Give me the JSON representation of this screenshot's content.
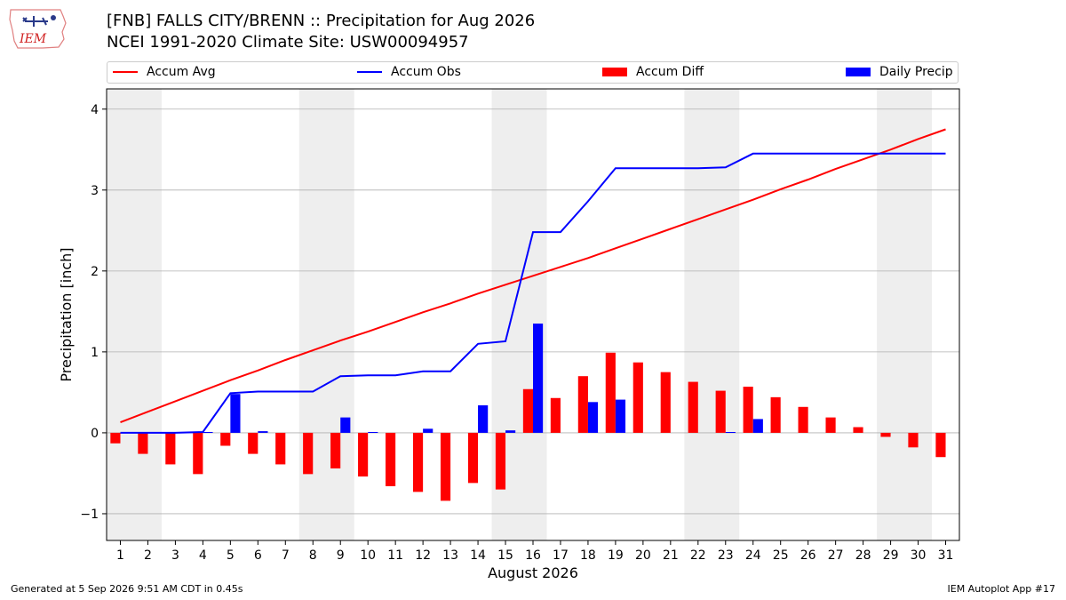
{
  "header": {
    "title_line1": "[FNB] FALLS CITY/BRENN :: Precipitation for Aug 2026",
    "title_line2": "NCEI 1991-2020 Climate Site: USW00094957",
    "logo_text": "IEM"
  },
  "legend": {
    "accum_avg": "Accum Avg",
    "accum_obs": "Accum Obs",
    "accum_diff": "Accum Diff",
    "daily_precip": "Daily Precip"
  },
  "footer": {
    "generated": "Generated at 5 Sep 2026 9:51 AM CDT in 0.45s",
    "app": "IEM Autoplot App #17"
  },
  "colors": {
    "accum_avg": "#ff0000",
    "accum_obs": "#0000ff",
    "accum_diff": "#ff0000",
    "daily_precip": "#0000ff",
    "weekend_band": "#eeeeee",
    "grid": "#b0b0b0"
  },
  "chart_data": {
    "type": "bar",
    "xlabel": "August 2026",
    "ylabel": "Precipitation [inch]",
    "ylim": [
      -1.33,
      4.25
    ],
    "yticks": [
      -1,
      0,
      1,
      2,
      3,
      4
    ],
    "ytick_labels": [
      "−1",
      "0",
      "1",
      "2",
      "3",
      "4"
    ],
    "categories": [
      "1",
      "2",
      "3",
      "4",
      "5",
      "6",
      "7",
      "8",
      "9",
      "10",
      "11",
      "12",
      "13",
      "14",
      "15",
      "16",
      "17",
      "18",
      "19",
      "20",
      "21",
      "22",
      "23",
      "24",
      "25",
      "26",
      "27",
      "28",
      "29",
      "30",
      "31"
    ],
    "shaded_days": [
      [
        1,
        2
      ],
      [
        8,
        9
      ],
      [
        15,
        16
      ],
      [
        22,
        23
      ],
      [
        29,
        30
      ]
    ],
    "grid": "horizontal",
    "legend_position": "top",
    "series": [
      {
        "name": "Accum Avg",
        "kind": "line",
        "values": [
          0.13,
          0.26,
          0.39,
          0.52,
          0.65,
          0.77,
          0.9,
          1.02,
          1.14,
          1.25,
          1.37,
          1.49,
          1.6,
          1.72,
          1.83,
          1.94,
          2.05,
          2.16,
          2.28,
          2.4,
          2.52,
          2.64,
          2.76,
          2.88,
          3.01,
          3.13,
          3.26,
          3.38,
          3.5,
          3.63,
          3.75
        ]
      },
      {
        "name": "Accum Obs",
        "kind": "line",
        "values": [
          0.0,
          0.0,
          0.0,
          0.01,
          0.49,
          0.51,
          0.51,
          0.51,
          0.7,
          0.71,
          0.71,
          0.76,
          0.76,
          1.1,
          1.13,
          2.48,
          2.48,
          2.86,
          3.27,
          3.27,
          3.27,
          3.27,
          3.28,
          3.45,
          3.45,
          3.45,
          3.45,
          3.45,
          3.45,
          3.45,
          3.45
        ]
      },
      {
        "name": "Accum Diff",
        "kind": "bar",
        "values": [
          -0.13,
          -0.26,
          -0.39,
          -0.51,
          -0.16,
          -0.26,
          -0.39,
          -0.51,
          -0.44,
          -0.54,
          -0.66,
          -0.73,
          -0.84,
          -0.62,
          -0.7,
          0.54,
          0.43,
          0.7,
          0.99,
          0.87,
          0.75,
          0.63,
          0.52,
          0.57,
          0.44,
          0.32,
          0.19,
          0.07,
          -0.05,
          -0.18,
          -0.3
        ]
      },
      {
        "name": "Daily Precip",
        "kind": "bar",
        "values": [
          0.0,
          0.0,
          0.0,
          0.01,
          0.48,
          0.02,
          0.0,
          0.0,
          0.19,
          0.01,
          0.0,
          0.05,
          0.0,
          0.34,
          0.03,
          1.35,
          0.0,
          0.38,
          0.41,
          0.0,
          0.0,
          0.0,
          0.01,
          0.17,
          0.0,
          0.0,
          0.0,
          0.0,
          0.0,
          0.0,
          0.0
        ]
      }
    ]
  }
}
